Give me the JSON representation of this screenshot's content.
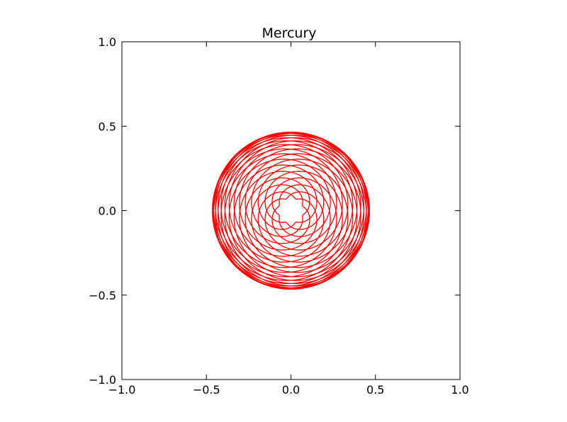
{
  "chart_data": {
    "type": "line",
    "title": "Mercury",
    "xlabel": "",
    "ylabel": "",
    "xlim": [
      -1.0,
      1.0
    ],
    "ylim": [
      -1.0,
      1.0
    ],
    "x_ticks": [
      "−1.0",
      "−0.5",
      "0.0",
      "0.5",
      "1.0"
    ],
    "y_ticks": [
      "1.0",
      "0.5",
      "0.0",
      "−0.5",
      "−1.0"
    ],
    "grid": false,
    "legend": "none",
    "series": [
      {
        "color": "#ff0000",
        "curve": "epitrochoid",
        "params": {
          "major_radius": 0.27,
          "minor_radius": 0.195,
          "rotations": 37,
          "turns": 29
        }
      }
    ]
  }
}
